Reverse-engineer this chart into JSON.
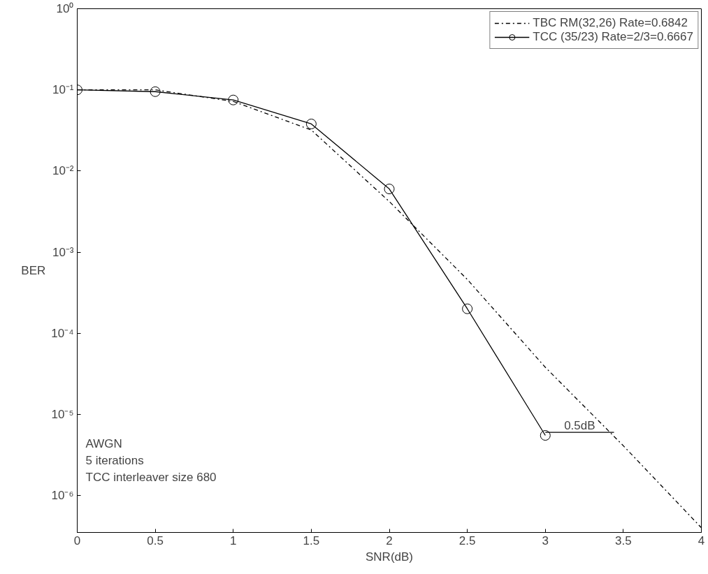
{
  "chart_data": {
    "type": "line",
    "xlabel": "SNR(dB)",
    "ylabel": "BER",
    "log": "y",
    "grid": false,
    "legend": "top right",
    "xlim": [
      0,
      4
    ],
    "xticks": [
      0,
      0.5,
      1,
      1.5,
      2,
      2.5,
      3,
      3.5,
      4
    ],
    "ylim": [
      3.5e-07,
      1
    ],
    "yticks": [
      {
        "value": 1,
        "label": "10⁰"
      },
      {
        "value": 0.1,
        "label": "10⁻¹"
      },
      {
        "value": 0.01,
        "label": "10⁻²"
      },
      {
        "value": 0.001,
        "label": "10⁻³"
      },
      {
        "value": 0.0001,
        "label": "10⁻⁴"
      },
      {
        "value": 1e-05,
        "label": "10⁻⁵"
      },
      {
        "value": 1e-06,
        "label": "10⁻⁶"
      }
    ],
    "series": [
      {
        "name": "TBC RM(32,26) Rate=0.6842",
        "color": "#000000",
        "line_style": "dashdot",
        "marker": "none",
        "x": [
          0,
          0.5,
          1,
          1.5,
          2,
          2.5,
          3,
          3.5,
          4
        ],
        "values": [
          0.1,
          0.1,
          0.072,
          0.032,
          0.0042,
          0.00046,
          3.8e-05,
          4.1e-06,
          4e-07
        ]
      },
      {
        "name": "TCC (35/23) Rate=2/3=0.6667",
        "color": "#000000",
        "line_style": "solid",
        "marker": "circle",
        "x": [
          0,
          0.5,
          1,
          1.5,
          2,
          2.5,
          3
        ],
        "values": [
          0.1,
          0.095,
          0.075,
          0.038,
          0.006,
          0.0002,
          5.5e-06
        ]
      },
      {
        "color": "#000000",
        "line_style": "solid",
        "marker": "none",
        "x": [
          3,
          3.44
        ],
        "values": [
          6e-06,
          6e-06
        ]
      }
    ],
    "annotations": [
      {
        "text": "0.5dB",
        "x": 3.22,
        "y": 6e-06
      },
      "AWGN",
      "5 iterations",
      "TCC interleaver size 680"
    ]
  }
}
